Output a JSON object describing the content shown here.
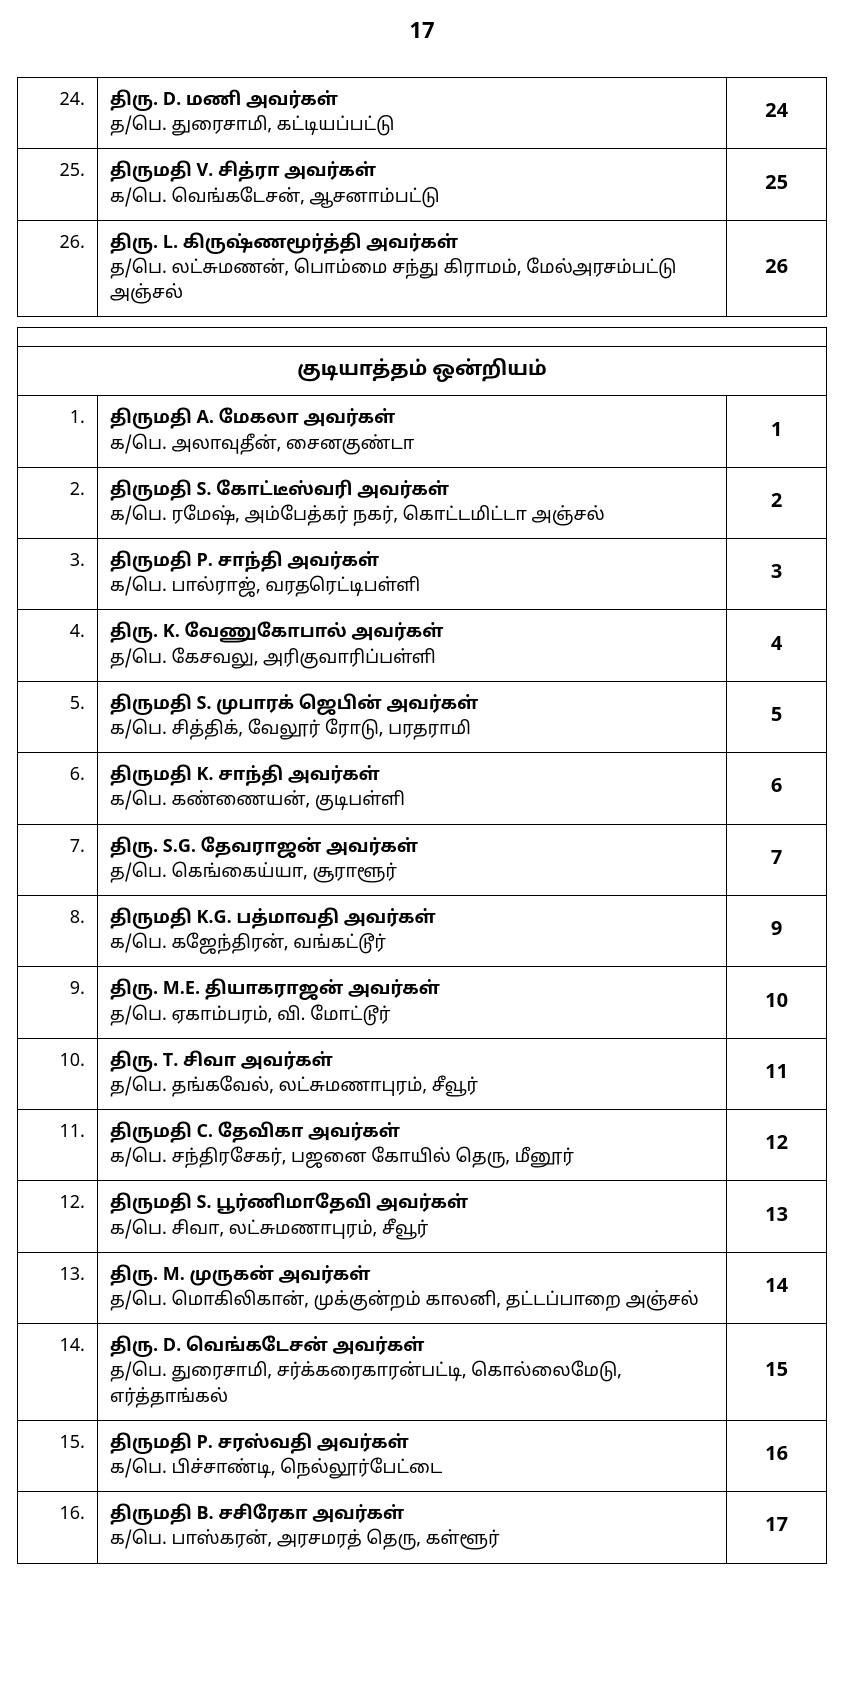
{
  "page_number": "17",
  "colors": {
    "border": "#000000",
    "text": "#000000",
    "bg": "#ffffff"
  },
  "top_rows": [
    {
      "num": "24.",
      "name": "திரு. D. மணி அவர்கள்",
      "sub": "த/பெ. துரைசாமி, கட்டியப்பட்டு",
      "ward": "24"
    },
    {
      "num": "25.",
      "name": "திருமதி V. சித்ரா அவர்கள்",
      "sub": "க/பெ. வெங்கடேசன், ஆசனாம்பட்டு",
      "ward": "25"
    },
    {
      "num": "26.",
      "name": "திரு. L. கிருஷ்ணமூர்த்தி அவர்கள்",
      "sub": "த/பெ. லட்சுமணன், பொம்மை சந்து கிராமம், மேல்அரசம்பட்டு அஞ்சல்",
      "ward": "26"
    }
  ],
  "section_title": "குடியாத்தம் ஒன்றியம்",
  "main_rows": [
    {
      "num": "1.",
      "name": "திருமதி A. மேகலா அவர்கள்",
      "sub": "க/பெ. அலாவுதீன், சைனகுண்டா",
      "ward": "1"
    },
    {
      "num": "2.",
      "name": "திருமதி S. கோட்டீஸ்வரி அவர்கள்",
      "sub": "க/பெ. ரமேஷ், அம்பேத்கர் நகர், கொட்டமிட்டா அஞ்சல்",
      "ward": "2"
    },
    {
      "num": "3.",
      "name": "திருமதி P. சாந்தி அவர்கள்",
      "sub": "க/பெ. பால்ராஜ், வரதரெட்டிபள்ளி",
      "ward": "3"
    },
    {
      "num": "4.",
      "name": "திரு. K. வேணுகோபால் அவர்கள்",
      "sub": "த/பெ. கேசவலு, அரிகுவாரிப்பள்ளி",
      "ward": "4"
    },
    {
      "num": "5.",
      "name": "திருமதி S. முபாரக் ஜெபின் அவர்கள்",
      "sub": "க/பெ. சித்திக், வேலூர் ரோடு, பரதராமி",
      "ward": "5"
    },
    {
      "num": "6.",
      "name": "திருமதி K. சாந்தி அவர்கள்",
      "sub": "க/பெ. கண்ணையன், குடிபள்ளி",
      "ward": "6"
    },
    {
      "num": "7.",
      "name": "திரு. S.G. தேவராஜன் அவர்கள்",
      "sub": "த/பெ. கெங்கைய்யா, சூராளூர்",
      "ward": "7"
    },
    {
      "num": "8.",
      "name": "திருமதி K.G. பத்மாவதி அவர்கள்",
      "sub": "க/பெ. கஜேந்திரன், வங்கட்டூர்",
      "ward": "9"
    },
    {
      "num": "9.",
      "name": "திரு. M.E. தியாகராஜன் அவர்கள்",
      "sub": "த/பெ. ஏகாம்பரம், வி. மோட்டூர்",
      "ward": "10"
    },
    {
      "num": "10.",
      "name": "திரு. T. சிவா அவர்கள்",
      "sub": "த/பெ. தங்கவேல், லட்சுமணாபுரம், சீவூர்",
      "ward": "11"
    },
    {
      "num": "11.",
      "name": "திருமதி C. தேவிகா அவர்கள்",
      "sub": "க/பெ. சந்திரசேகர், பஜனை கோயில் தெரு, மீனூர்",
      "ward": "12"
    },
    {
      "num": "12.",
      "name": "திருமதி S. பூர்ணிமாதேவி அவர்கள்",
      "sub": "க/பெ. சிவா, லட்சுமணாபுரம், சீவூர்",
      "ward": "13"
    },
    {
      "num": "13.",
      "name": "திரு. M. முருகன் அவர்கள்",
      "sub": "த/பெ. மொகிலிகான், முக்குன்றம் காலனி, தட்டப்பாறை அஞ்சல்",
      "ward": "14"
    },
    {
      "num": "14.",
      "name": "திரு. D. வெங்கடேசன் அவர்கள்",
      "sub": "த/பெ. துரைசாமி, சர்க்கரைகாரன்பட்டி, கொல்லைமேடு, எர்த்தாங்கல்",
      "ward": "15"
    },
    {
      "num": "15.",
      "name": "திருமதி P. சரஸ்வதி அவர்கள்",
      "sub": "க/பெ. பிச்சாண்டி, நெல்லூர்பேட்டை",
      "ward": "16"
    },
    {
      "num": "16.",
      "name": "திருமதி B. சசிரேகா அவர்கள்",
      "sub": "க/பெ. பாஸ்கரன், அரசமரத் தெரு, கள்ளூர்",
      "ward": "17"
    }
  ]
}
